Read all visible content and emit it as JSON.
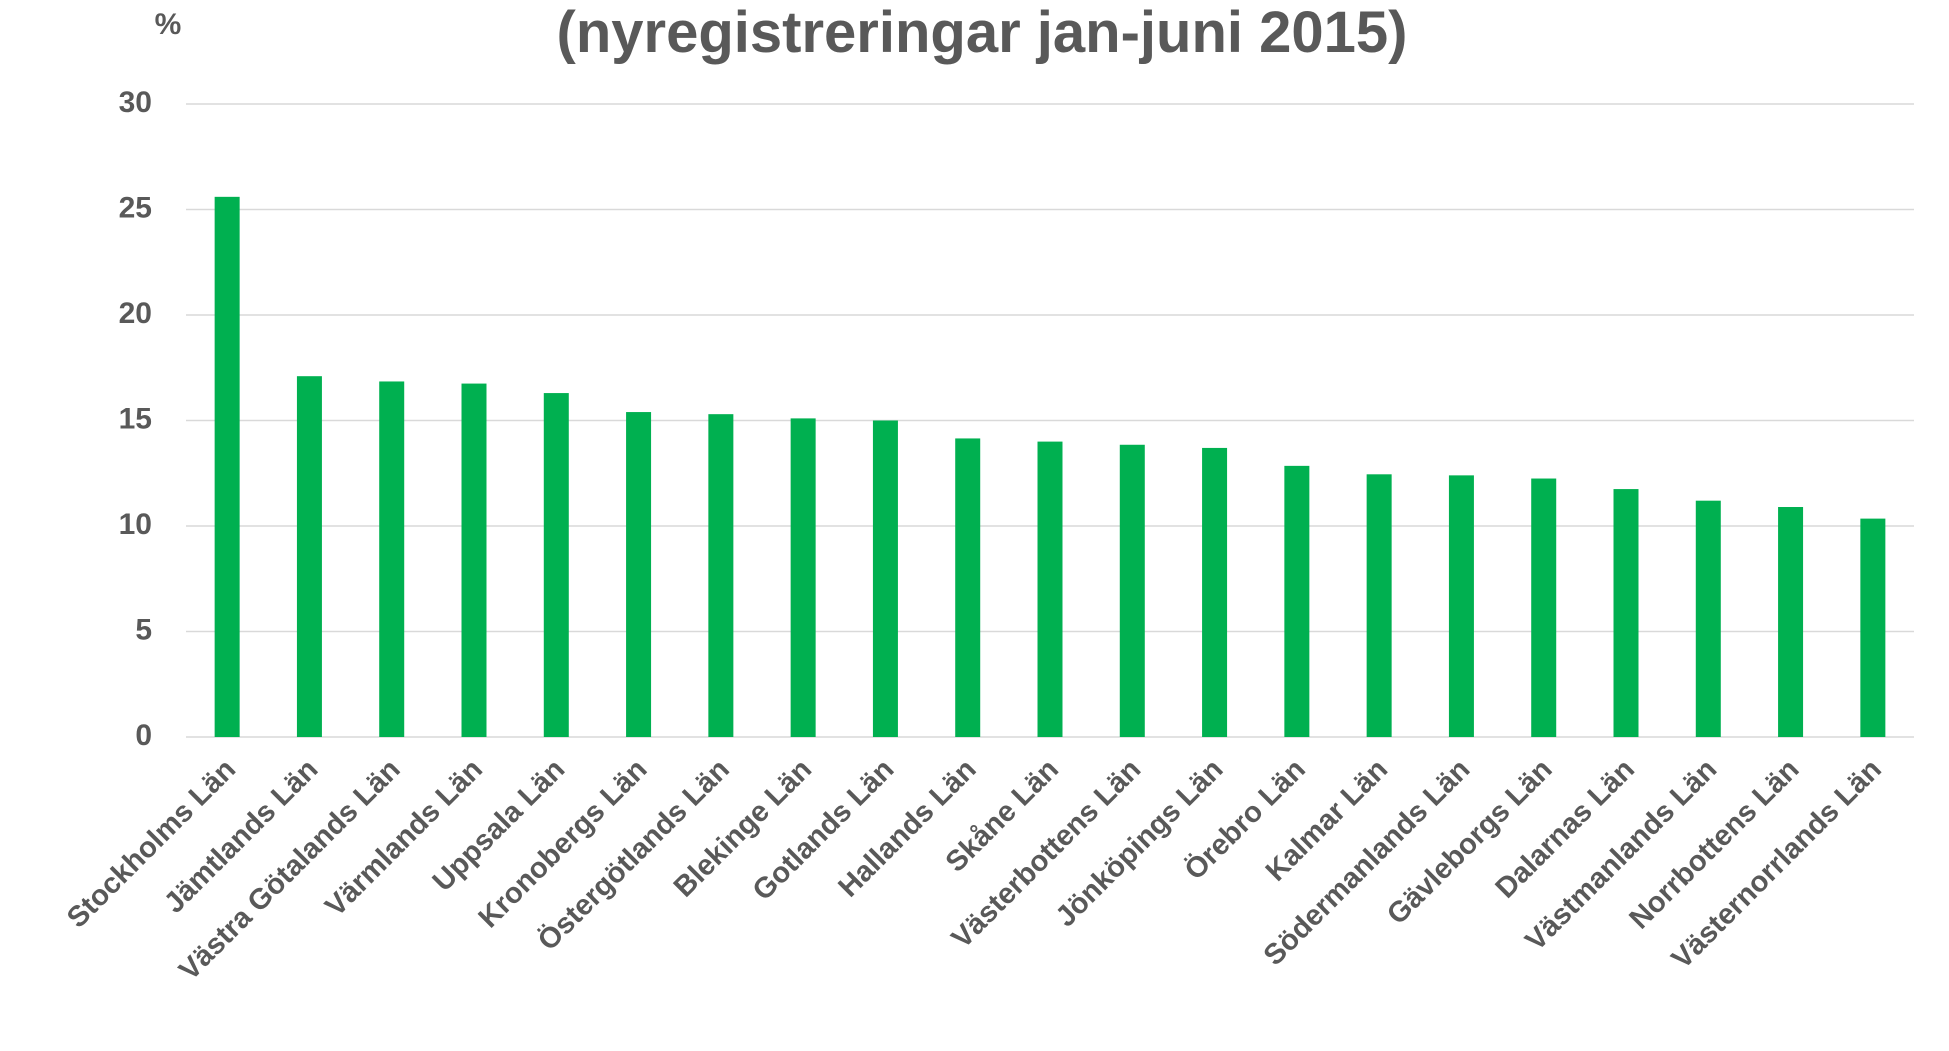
{
  "chart_data": {
    "type": "bar",
    "title": "(nyregistreringar jan-juni 2015)",
    "y_label": "%",
    "categories": [
      "Stockholms Län",
      "Jämtlands Län",
      "Västra Götalands Län",
      "Värmlands Län",
      "Uppsala Län",
      "Kronobergs Län",
      "Östergötlands Län",
      "Blekinge Län",
      "Gotlands Län",
      "Hallands Län",
      "Skåne Län",
      "Västerbottens Län",
      "Jönköpings Län",
      "Örebro Län",
      "Kalmar Län",
      "Södermanlands Län",
      "Gävleborgs Län",
      "Dalarnas Län",
      "Västmanlands Län",
      "Norrbottens Län",
      "Västernorrlands Län"
    ],
    "values": [
      25.6,
      17.1,
      16.85,
      16.75,
      16.3,
      15.4,
      15.3,
      15.1,
      15.0,
      14.15,
      14.0,
      13.85,
      13.7,
      12.85,
      12.45,
      12.4,
      12.25,
      11.75,
      11.2,
      10.9,
      10.35
    ],
    "color": "#00b050",
    "ylim": [
      0,
      30
    ],
    "yticks": [
      0,
      5,
      10,
      15,
      20,
      25,
      30
    ],
    "grid": true
  }
}
